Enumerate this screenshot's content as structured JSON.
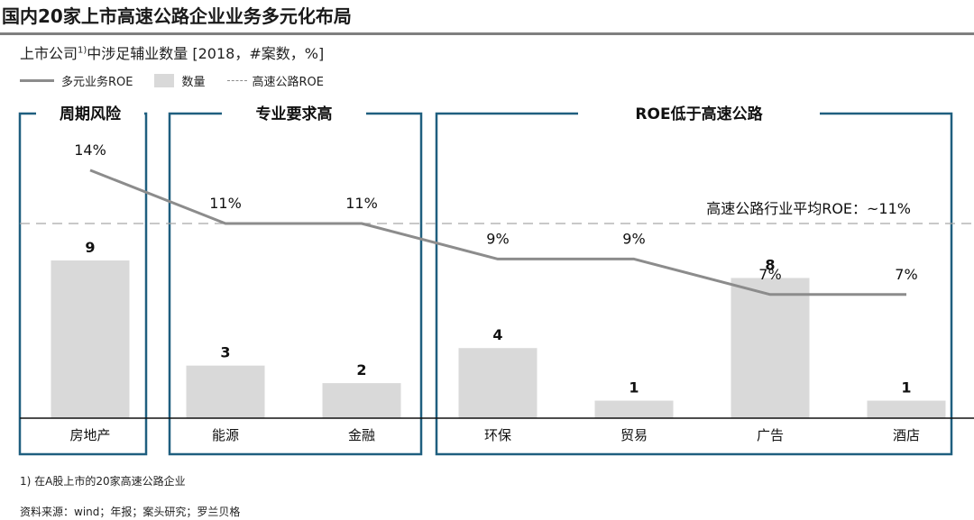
{
  "title": "国内20家上市高速公路企业业务多元化布局",
  "subtitle": {
    "main": "上市公司",
    "sup": "1)",
    "rest": "中涉足辅业数量 [2018，#案数，%]"
  },
  "legend": {
    "line": "多元业务ROE",
    "bar": "数量",
    "avg": "高速公路ROE"
  },
  "footnote": "1) 在A股上市的20家高速公路企业",
  "source": "资料来源：wind；年报；案头研究；罗兰贝格",
  "colors": {
    "frame": "#1f5f7f",
    "bar": "#d9d9d9",
    "line": "#8c8c8c",
    "avg": "#a6a6a6"
  },
  "chart_data": {
    "type": "bar",
    "categories": [
      "房地产",
      "能源",
      "金融",
      "环保",
      "贸易",
      "广告",
      "酒店"
    ],
    "series": [
      {
        "name": "数量",
        "type": "bar",
        "values": [
          9,
          3,
          2,
          4,
          1,
          8,
          1
        ]
      },
      {
        "name": "多元业务ROE",
        "type": "line",
        "values": [
          14,
          11,
          11,
          9,
          9,
          7,
          7
        ],
        "labels": [
          "14%",
          "11%",
          "11%",
          "9%",
          "9%",
          "7%",
          "7%"
        ]
      }
    ],
    "reference_line": {
      "name": "高速公路ROE",
      "value": 11,
      "label": "高速公路行业平均ROE：~11%"
    },
    "groups": [
      {
        "label": "周期风险",
        "categories": [
          "房地产"
        ]
      },
      {
        "label": "专业要求高",
        "categories": [
          "能源",
          "金融"
        ]
      },
      {
        "label": "ROE低于高速公路",
        "categories": [
          "环保",
          "贸易",
          "广告",
          "酒店"
        ]
      }
    ],
    "bar_max": 10,
    "roe_range": [
      4,
      16
    ]
  }
}
